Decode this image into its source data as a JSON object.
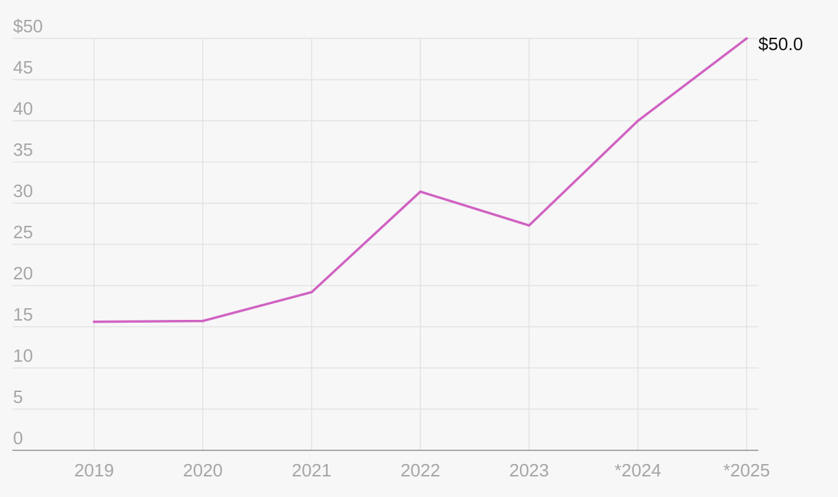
{
  "chart_data": {
    "type": "line",
    "categories": [
      "2019",
      "2020",
      "2021",
      "2022",
      "2023",
      "*2024",
      "*2025"
    ],
    "series": [
      {
        "values": [
          15.6,
          15.7,
          19.2,
          31.4,
          27.3,
          40.0,
          50.0
        ],
        "color": "#d062c2"
      }
    ],
    "y_ticks": [
      {
        "value": 0,
        "label": "0"
      },
      {
        "value": 5,
        "label": "5"
      },
      {
        "value": 10,
        "label": "10"
      },
      {
        "value": 15,
        "label": "15"
      },
      {
        "value": 20,
        "label": "20"
      },
      {
        "value": 25,
        "label": "25"
      },
      {
        "value": 30,
        "label": "30"
      },
      {
        "value": 35,
        "label": "35"
      },
      {
        "value": 40,
        "label": "40"
      },
      {
        "value": 45,
        "label": "45"
      },
      {
        "value": 50,
        "label": "$50"
      }
    ],
    "ylim": [
      0,
      50
    ],
    "end_label": "$50.0",
    "grid": true,
    "legend": "none",
    "colors": {
      "background": "#f7f7f7",
      "grid": "#e3e3e3",
      "axis": "#a8a8a8",
      "tick_text": "#a6a6a6",
      "end_label_text": "#111111"
    }
  }
}
